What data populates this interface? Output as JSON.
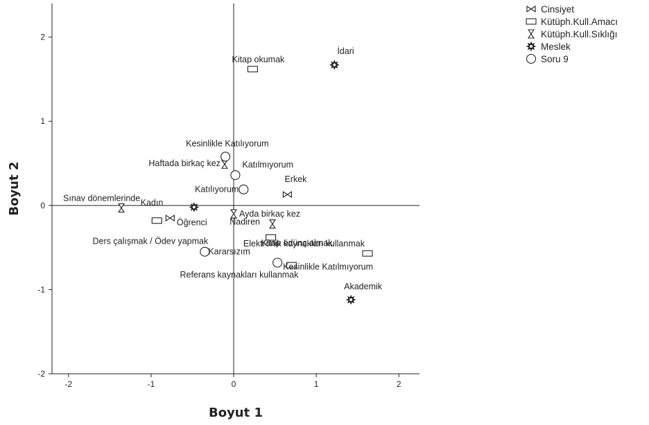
{
  "chart_data": {
    "type": "scatter",
    "title": "",
    "xlabel": "Boyut 1",
    "ylabel": "Boyut 2",
    "xlim": [
      -2.2,
      2.25
    ],
    "ylim": [
      -2.0,
      2.4
    ],
    "xticks": [
      "-2",
      "-1",
      "0",
      "1",
      "2"
    ],
    "yticks": [
      "2",
      "1",
      "0",
      "-1",
      "-2"
    ],
    "grid": false,
    "legend_position": "top-right",
    "series": [
      {
        "name": "Cinsiyet",
        "marker": "bowtie",
        "points": [
          {
            "label": "Kadın",
            "x": -0.77,
            "y": -0.15
          },
          {
            "label": "Erkek",
            "x": 0.65,
            "y": 0.13
          }
        ]
      },
      {
        "name": "Kütüph.Kull.Amacı",
        "marker": "rect",
        "points": [
          {
            "label": "Kitap okumak",
            "x": 0.23,
            "y": 1.62
          },
          {
            "label": "Ders çalışmak / Ödev yapmak",
            "x": -0.93,
            "y": -0.18
          },
          {
            "label": "Kitap ödünç almak",
            "x": 0.45,
            "y": -0.38
          },
          {
            "label": "Elektronik kaynakları kullanmak",
            "x": 1.62,
            "y": -0.57
          },
          {
            "label": "Referans kaynakları kullanmak",
            "x": 0.7,
            "y": -0.71
          }
        ]
      },
      {
        "name": "Kütüph.Kull.Sıklığı",
        "marker": "hourglass",
        "points": [
          {
            "label": "Haftada birkaç kez",
            "x": -0.11,
            "y": 0.49
          },
          {
            "label": "Sınav dönemlerinde",
            "x": -1.36,
            "y": -0.03
          },
          {
            "label": "Ayda birkaç kez",
            "x": 0.0,
            "y": -0.1
          },
          {
            "label": "Nadiren",
            "x": 0.47,
            "y": -0.22
          }
        ]
      },
      {
        "name": "Meslek",
        "marker": "star",
        "points": [
          {
            "label": "İdari",
            "x": 1.22,
            "y": 1.67
          },
          {
            "label": "Öğrenci",
            "x": -0.48,
            "y": -0.02
          },
          {
            "label": "Akademik",
            "x": 1.42,
            "y": -1.12
          }
        ]
      },
      {
        "name": "Soru 9",
        "marker": "circle",
        "points": [
          {
            "label": "Kesinlikle Katılıyorum",
            "x": -0.1,
            "y": 0.58
          },
          {
            "label": "Katılmıyorum",
            "x": 0.02,
            "y": 0.36
          },
          {
            "label": "Katılıyorum",
            "x": 0.12,
            "y": 0.19
          },
          {
            "label": "Kararsızım",
            "x": -0.35,
            "y": -0.55
          },
          {
            "label": "Kesinlikle Katılmıyorum",
            "x": 0.53,
            "y": -0.68
          }
        ]
      }
    ]
  }
}
